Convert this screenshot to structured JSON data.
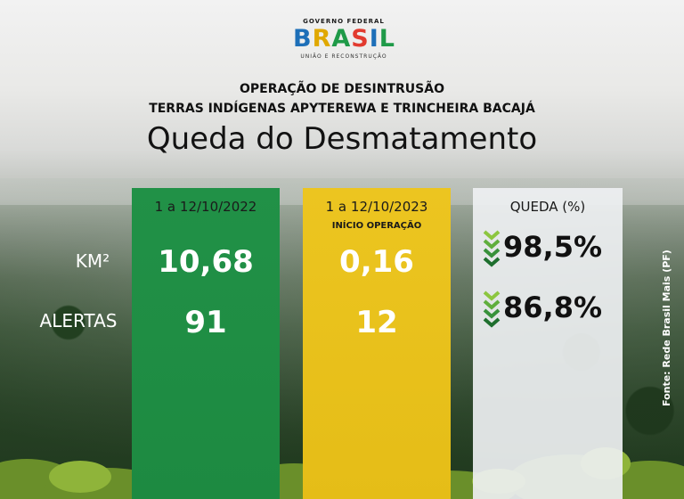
{
  "logo": {
    "top_line": "GOVERNO FEDERAL",
    "letters": [
      "B",
      "R",
      "A",
      "S",
      "I",
      "L"
    ],
    "letter_colors": [
      "#1d6fb8",
      "#f2c511",
      "#1f9a48",
      "#e23b2f",
      "#1d6fb8",
      "#1f9a48"
    ],
    "bottom_line": "UNIÃO E RECONSTRUÇÃO"
  },
  "header": {
    "line1": "OPERAÇÃO DE DESINTRUSÃO",
    "line2": "TERRAS INDÍGENAS APYTEREWA E TRINCHEIRA BACAJÁ",
    "title": "Queda do Desmatamento"
  },
  "rows": {
    "km_label": "KM²",
    "alerts_label": "ALERTAS"
  },
  "columns": {
    "y2022": {
      "header": "1 a 12/10/2022",
      "km": "10,68",
      "alerts": "91",
      "color": "#219147"
    },
    "y2023": {
      "header": "1 a 12/10/2023",
      "subheader": "INÍCIO OPERAÇÃO",
      "km": "0,16",
      "alerts": "12",
      "color": "#ecc520"
    },
    "drop": {
      "header": "QUEDA (%)",
      "km": "98,5%",
      "alerts": "86,8%",
      "arrow_icon": "chevrons-down-icon"
    }
  },
  "source": "Fonte: Rede Brasil Mais (PF)"
}
